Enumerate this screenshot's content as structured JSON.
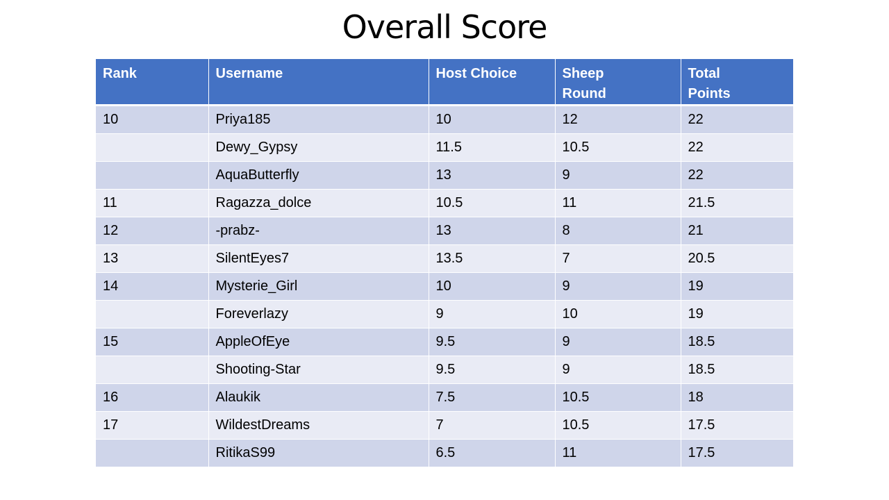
{
  "slide": {
    "title": "Overall Score"
  },
  "colors": {
    "header": "#4472C4",
    "row_odd": "#CFD5EA",
    "row_even": "#E9EBF5"
  },
  "table": {
    "headers": [
      "Rank",
      "Username",
      "Host Choice",
      "Sheep\nRound",
      "Total\nPoints"
    ],
    "rows": [
      [
        "10",
        "Priya185",
        "10",
        "12",
        "22"
      ],
      [
        "",
        "Dewy_Gypsy",
        "11.5",
        "10.5",
        "22"
      ],
      [
        "",
        "AquaButterfly",
        "13",
        "9",
        "22"
      ],
      [
        "11",
        "Ragazza_dolce",
        "10.5",
        "11",
        "21.5"
      ],
      [
        "12",
        "-prabz-",
        "13",
        "8",
        "21"
      ],
      [
        "13",
        "SilentEyes7",
        "13.5",
        "7",
        "20.5"
      ],
      [
        "14",
        "Mysterie_Girl",
        "10",
        "9",
        "19"
      ],
      [
        "",
        "Foreverlazy",
        "9",
        "10",
        "19"
      ],
      [
        "15",
        "AppleOfEye",
        "9.5",
        "9",
        "18.5"
      ],
      [
        "",
        "Shooting-Star",
        "9.5",
        "9",
        "18.5"
      ],
      [
        "16",
        "Alaukik",
        "7.5",
        "10.5",
        "18"
      ],
      [
        "17",
        "WildestDreams",
        "7",
        "10.5",
        "17.5"
      ],
      [
        "",
        "RitikaS99",
        "6.5",
        "11",
        "17.5"
      ]
    ]
  }
}
